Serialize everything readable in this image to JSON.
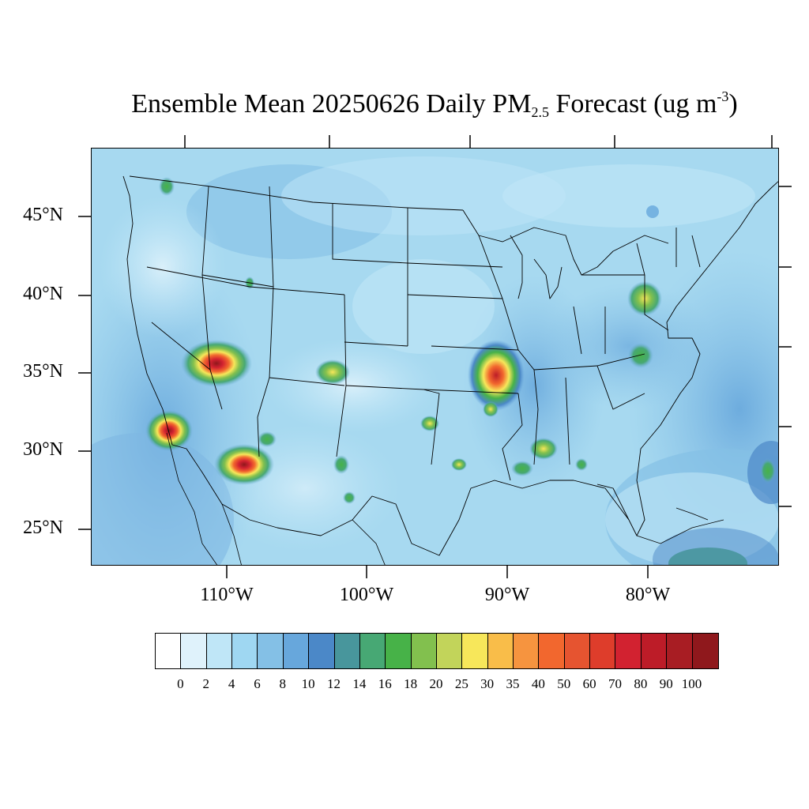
{
  "title": {
    "prefix": "Ensemble Mean 20250626 Daily PM",
    "subscript": "2.5",
    "middle": " Forecast (ug m",
    "superscript": "-3",
    "suffix": ")"
  },
  "map": {
    "region": "Continental United States",
    "lat_labels": [
      "45°N",
      "40°N",
      "35°N",
      "30°N",
      "25°N"
    ],
    "lon_labels": [
      "110°W",
      "100°W",
      "90°W",
      "80°W"
    ],
    "base_color": "#a7d9f0",
    "hotspots": [
      {
        "name": "Arizona / Nevada border",
        "peak_level": "90"
      },
      {
        "name": "Southern California",
        "peak_level": "100"
      },
      {
        "name": "Southeastern Arizona",
        "peak_level": "90"
      },
      {
        "name": "Western Tennessee / Arkansas",
        "peak_level": "80"
      },
      {
        "name": "Northeastern New Mexico",
        "peak_level": "30"
      },
      {
        "name": "Pennsylvania",
        "peak_level": "25"
      },
      {
        "name": "Virginia",
        "peak_level": "20"
      }
    ]
  },
  "colorbar": {
    "colors": [
      "#ffffff",
      "#dff2fb",
      "#bfe6f7",
      "#9fd7f2",
      "#84c0e6",
      "#67a7dc",
      "#4b88c8",
      "#48969c",
      "#47a874",
      "#47b248",
      "#82c04e",
      "#c2d45a",
      "#f7e75a",
      "#f9bd49",
      "#f6943f",
      "#f2672e",
      "#e65430",
      "#de3d2b",
      "#d22230",
      "#bd1c28",
      "#a81d23",
      "#8f181c"
    ],
    "labels": [
      "0",
      "2",
      "4",
      "6",
      "8",
      "10",
      "12",
      "14",
      "16",
      "18",
      "20",
      "25",
      "30",
      "35",
      "40",
      "50",
      "60",
      "70",
      "80",
      "90",
      "100"
    ]
  }
}
